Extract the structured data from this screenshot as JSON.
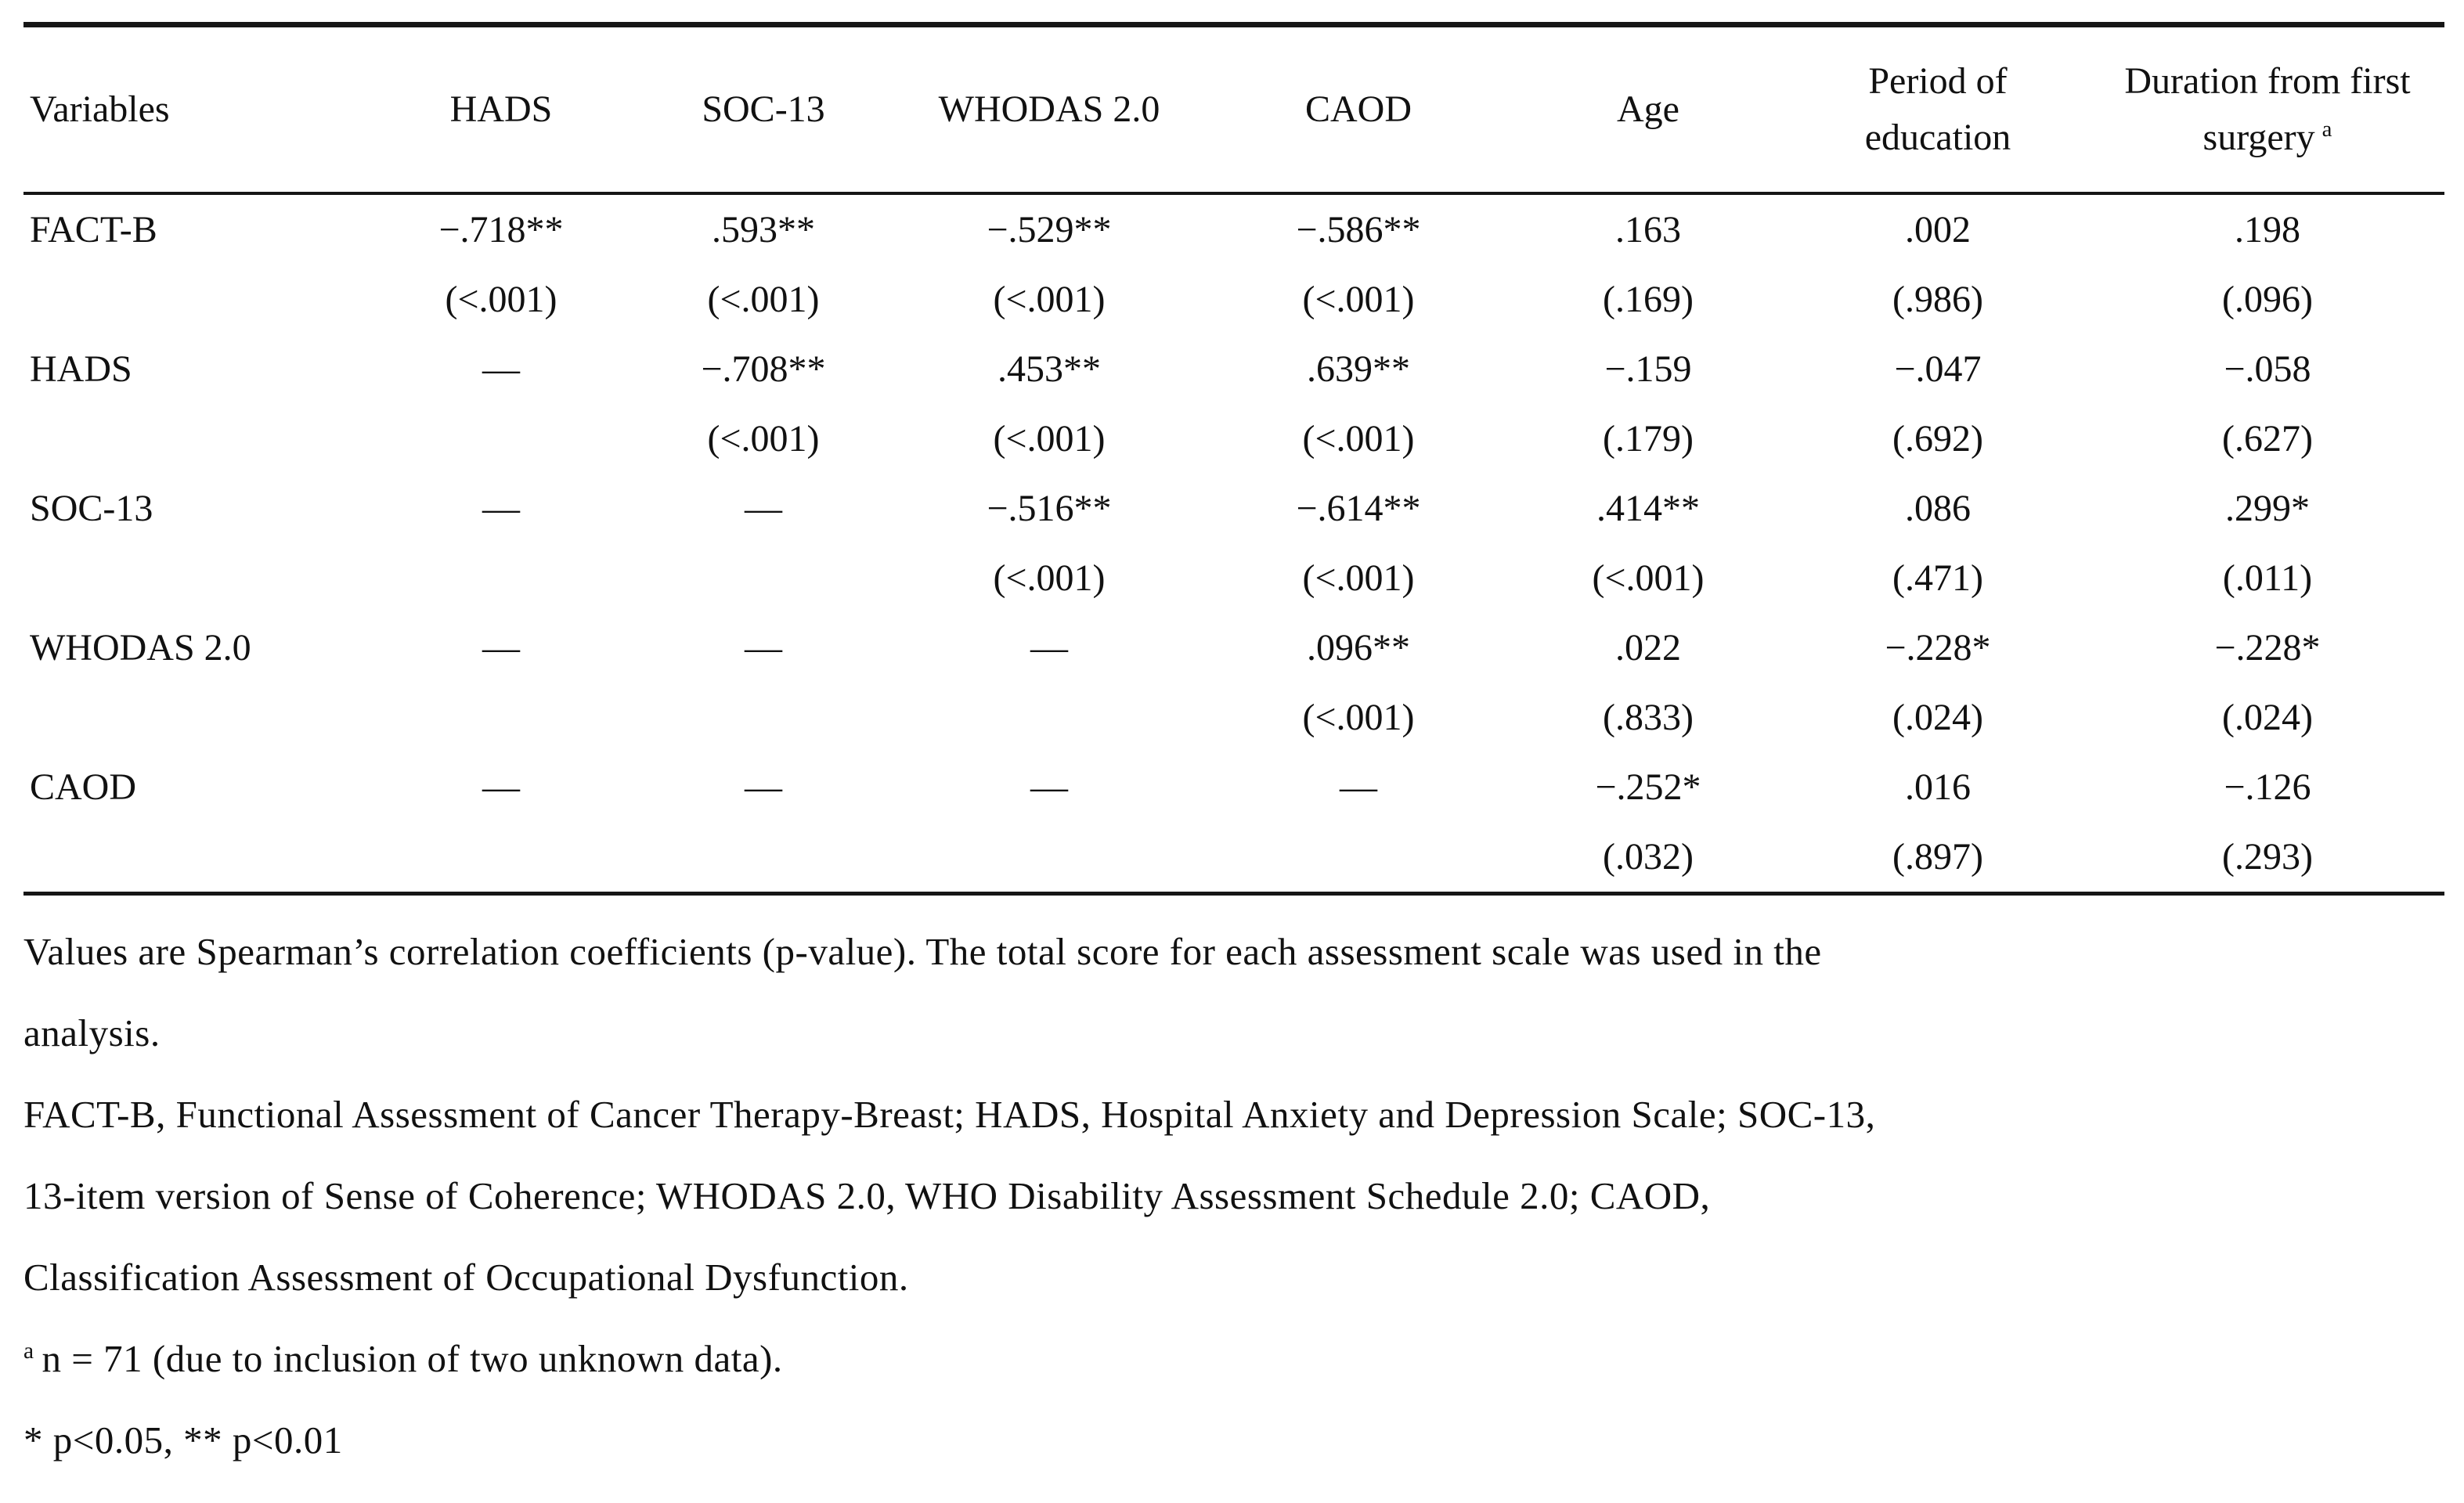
{
  "table": {
    "columns": [
      {
        "label": "Variables",
        "superscript": ""
      },
      {
        "label": "HADS",
        "superscript": ""
      },
      {
        "label": "SOC-13",
        "superscript": ""
      },
      {
        "label": "WHODAS 2.0",
        "superscript": ""
      },
      {
        "label": "CAOD",
        "superscript": ""
      },
      {
        "label": "Age",
        "superscript": ""
      },
      {
        "label": "Period of education",
        "superscript": ""
      },
      {
        "label": "Duration from first surgery",
        "superscript": "a"
      }
    ],
    "rows": [
      {
        "variable": "FACT-B",
        "cells": [
          {
            "coef": "−.718**",
            "p": "(<.001)"
          },
          {
            "coef": ".593**",
            "p": "(<.001)"
          },
          {
            "coef": "−.529**",
            "p": "(<.001)"
          },
          {
            "coef": "−.586**",
            "p": "(<.001)"
          },
          {
            "coef": ".163",
            "p": "(.169)"
          },
          {
            "coef": ".002",
            "p": "(.986)"
          },
          {
            "coef": ".198",
            "p": "(.096)"
          }
        ]
      },
      {
        "variable": "HADS",
        "cells": [
          {
            "coef": "—",
            "p": ""
          },
          {
            "coef": "−.708**",
            "p": "(<.001)"
          },
          {
            "coef": ".453**",
            "p": "(<.001)"
          },
          {
            "coef": ".639**",
            "p": "(<.001)"
          },
          {
            "coef": "−.159",
            "p": "(.179)"
          },
          {
            "coef": "−.047",
            "p": "(.692)"
          },
          {
            "coef": "−.058",
            "p": "(.627)"
          }
        ]
      },
      {
        "variable": "SOC-13",
        "cells": [
          {
            "coef": "—",
            "p": ""
          },
          {
            "coef": "—",
            "p": ""
          },
          {
            "coef": "−.516**",
            "p": "(<.001)"
          },
          {
            "coef": "−.614**",
            "p": "(<.001)"
          },
          {
            "coef": ".414**",
            "p": "(<.001)"
          },
          {
            "coef": ".086",
            "p": "(.471)"
          },
          {
            "coef": ".299*",
            "p": "(.011)"
          }
        ]
      },
      {
        "variable": "WHODAS 2.0",
        "cells": [
          {
            "coef": "—",
            "p": ""
          },
          {
            "coef": "—",
            "p": ""
          },
          {
            "coef": "—",
            "p": ""
          },
          {
            "coef": ".096**",
            "p": "(<.001)"
          },
          {
            "coef": ".022",
            "p": "(.833)"
          },
          {
            "coef": "−.228*",
            "p": "(.024)"
          },
          {
            "coef": "−.228*",
            "p": "(.024)"
          }
        ]
      },
      {
        "variable": "CAOD",
        "cells": [
          {
            "coef": "—",
            "p": ""
          },
          {
            "coef": "—",
            "p": ""
          },
          {
            "coef": "—",
            "p": ""
          },
          {
            "coef": "—",
            "p": ""
          },
          {
            "coef": "−.252*",
            "p": "(.032)"
          },
          {
            "coef": ".016",
            "p": "(.897)"
          },
          {
            "coef": "−.126",
            "p": "(.293)"
          }
        ]
      }
    ]
  },
  "footnotes": {
    "lines": [
      {
        "sup": "",
        "text": "Values are Spearman’s correlation coefficients (p-value). The total score for each assessment scale was used in the"
      },
      {
        "sup": "",
        "text": "analysis."
      },
      {
        "sup": "",
        "text": "FACT-B, Functional Assessment of Cancer Therapy-Breast; HADS, Hospital Anxiety and Depression Scale; SOC-13,"
      },
      {
        "sup": "",
        "text": "13-item version of Sense of Coherence; WHODAS 2.0, WHO Disability Assessment Schedule 2.0; CAOD,"
      },
      {
        "sup": "",
        "text": "Classification Assessment of Occupational Dysfunction."
      },
      {
        "sup": "a",
        "text": "n = 71 (due to inclusion of two unknown data)."
      },
      {
        "sup": "",
        "text": "* p<0.05, ** p<0.01"
      }
    ]
  },
  "colors": {
    "background": "#ffffff",
    "text": "#111111",
    "rule": "#161616"
  }
}
